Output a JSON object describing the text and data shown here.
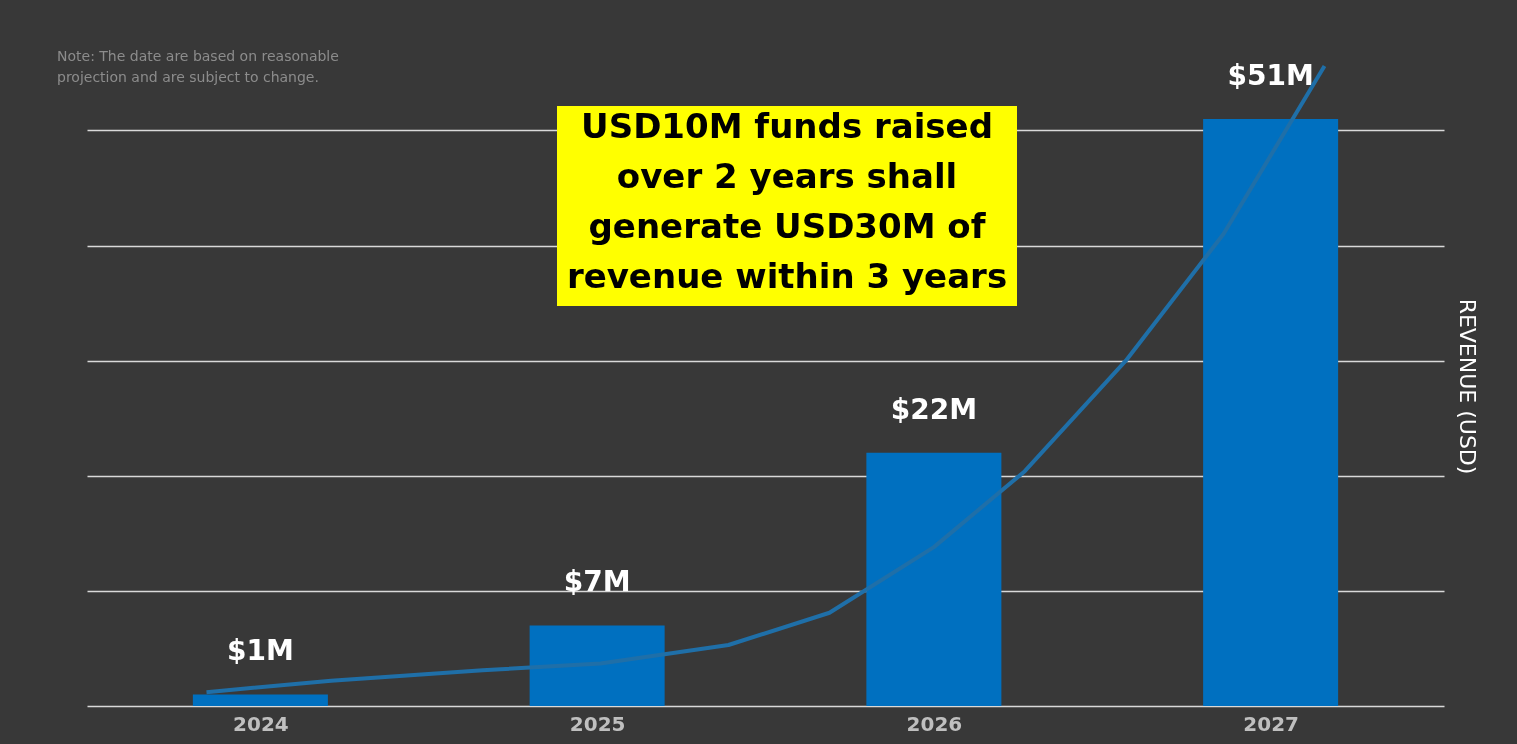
{
  "chart_data": {
    "type": "bar",
    "ylabel": "REVENUE (USD)",
    "annotations": [
      "Note: The date are based on reasonable\nprojection and are subject to change.",
      "USD10M funds raised\nover 2 years shall\ngenerate USD30M of\nrevenue within 3 years"
    ],
    "x": [
      2024,
      2025,
      2026,
      2027
    ],
    "xlim": [
      2023.5,
      2027.5
    ],
    "xticks": [
      2024,
      2025,
      2026,
      2027
    ],
    "yticks": [
      {
        "value": 0,
        "label": null
      },
      {
        "value": 10,
        "label": null
      },
      {
        "value": 20,
        "label": null
      },
      {
        "value": 30,
        "label": null
      },
      {
        "value": 40,
        "label": null
      },
      {
        "value": 50,
        "label": null
      }
    ],
    "grid": "y",
    "tick_labels": "x",
    "series": [
      {
        "type": "bar",
        "color": "#0070c0",
        "values": [
          1,
          7,
          22,
          51
        ],
        "value_labels": [
          "$1M",
          "$7M",
          "$22M",
          "$51M"
        ]
      },
      {
        "type": "line",
        "color": "#1f6fa8",
        "x": [
          2023.84,
          2024.21,
          2024.66,
          2025.01,
          2025.39,
          2025.69,
          2026.0,
          2026.27,
          2026.57,
          2026.86,
          2027.16
        ],
        "values": [
          1.2,
          2.2,
          3.1,
          3.7,
          5.3,
          8.1,
          13.8,
          20.4,
          30.0,
          41.0,
          55.6
        ]
      }
    ]
  }
}
